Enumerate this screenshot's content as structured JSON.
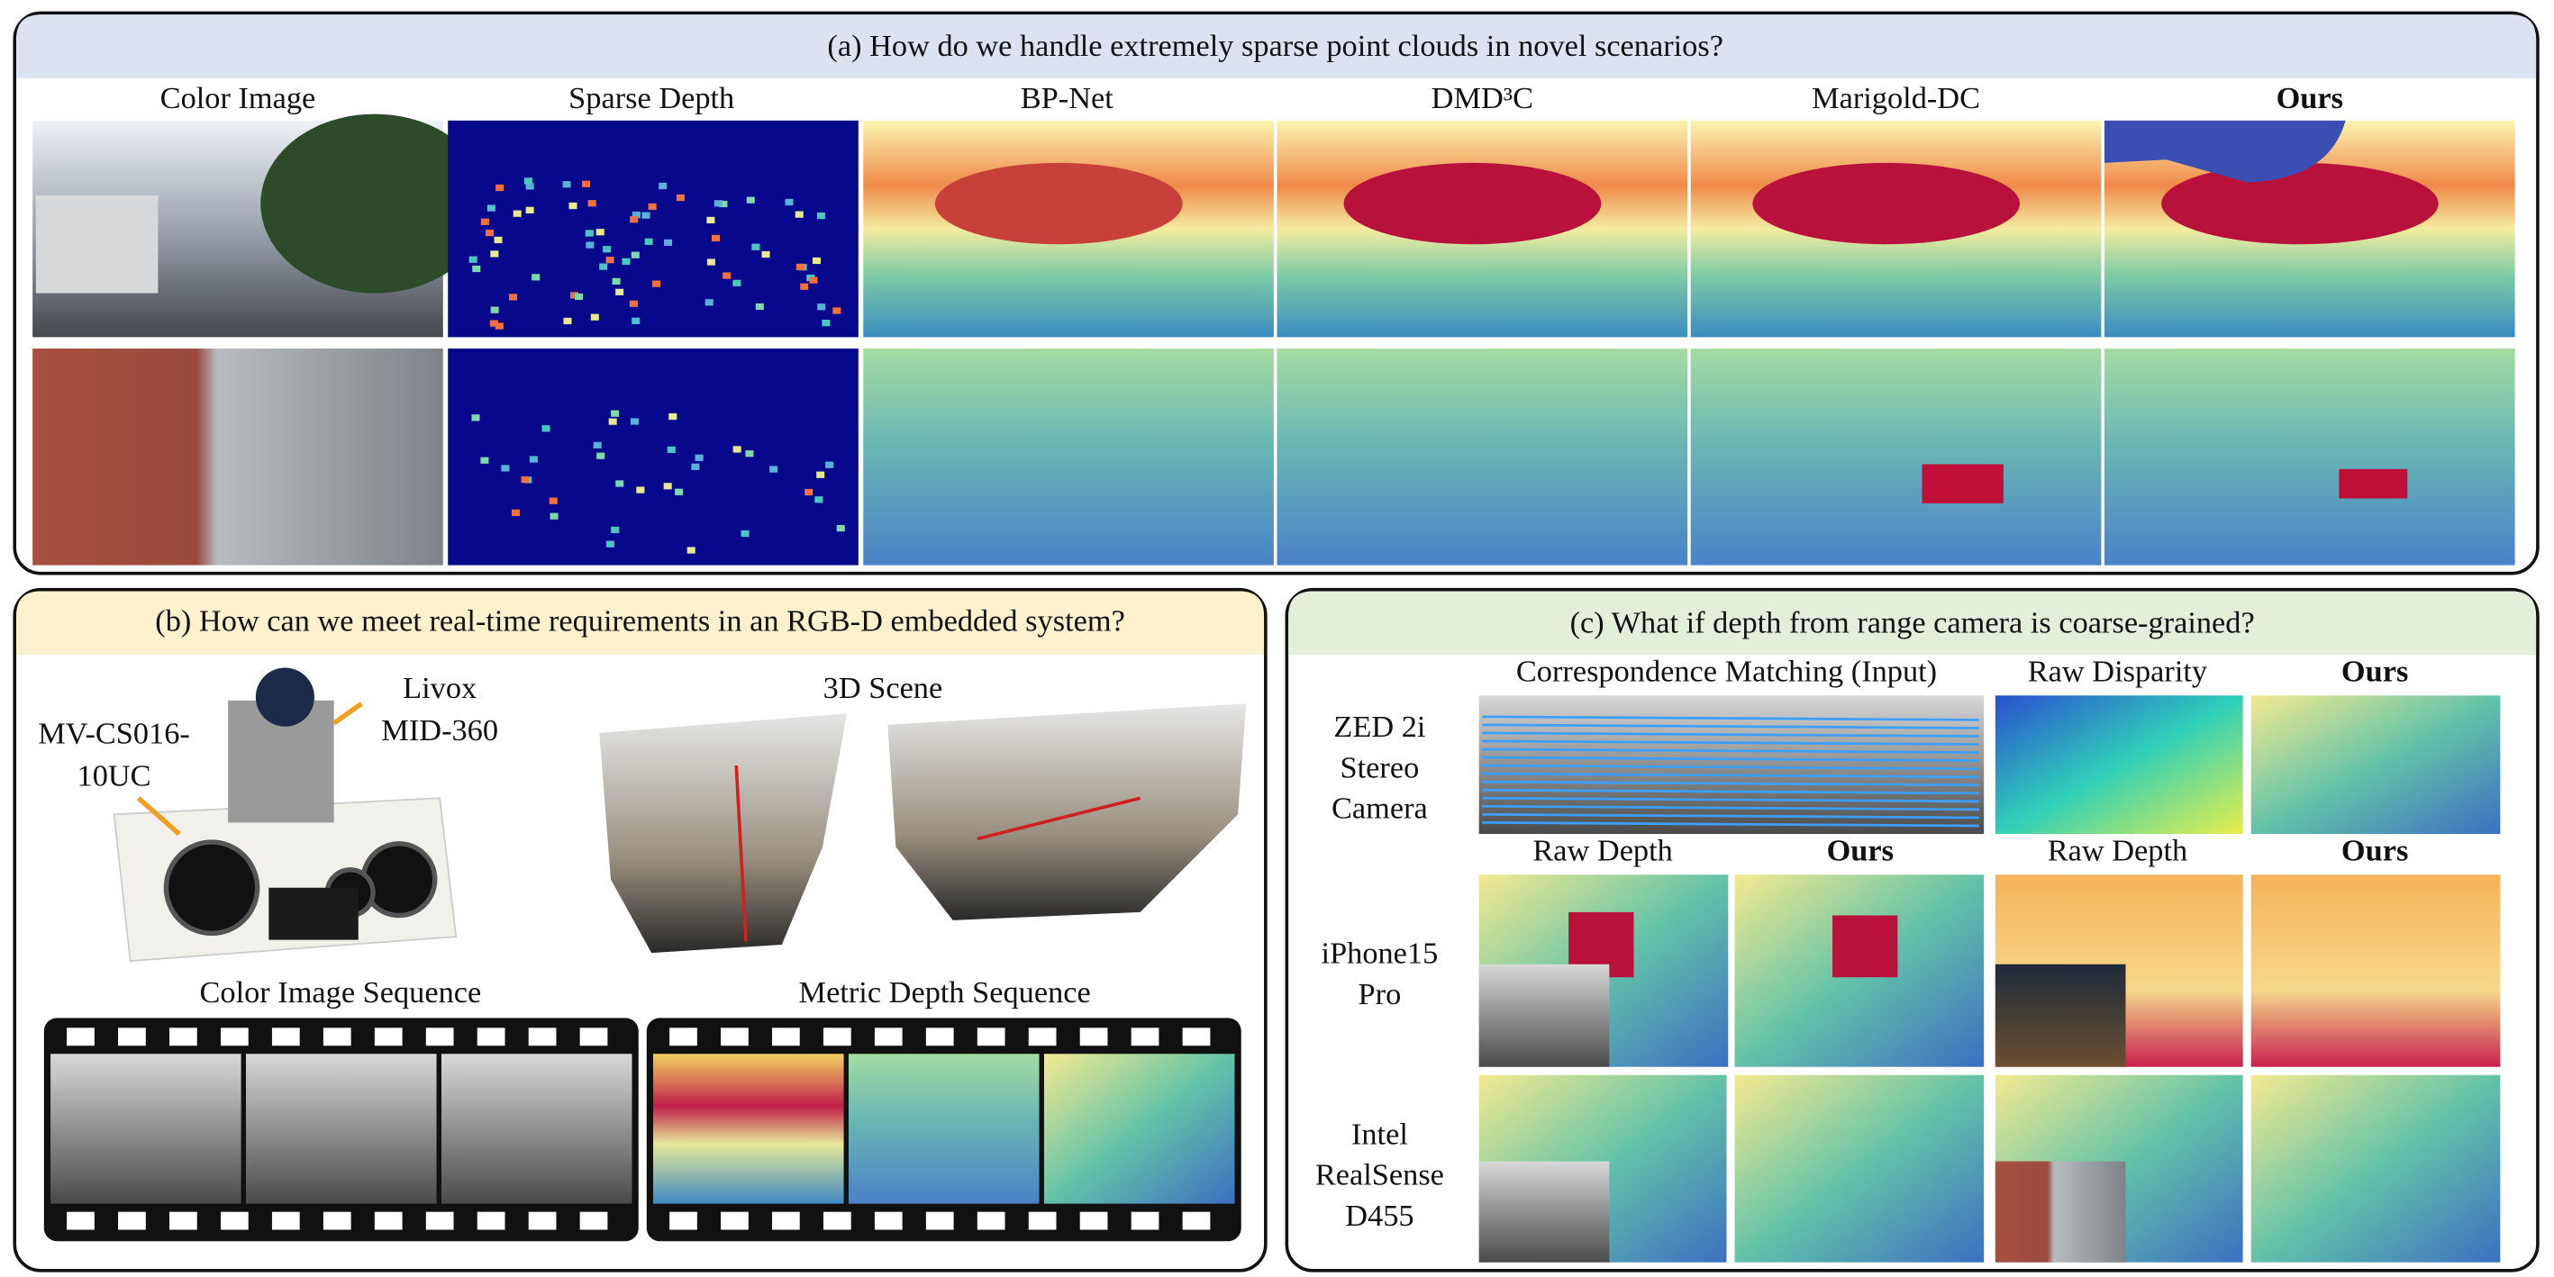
{
  "panel_a": {
    "title": "(a) How do we handle extremely sparse point clouds in novel scenarios?",
    "columns": [
      "Color Image",
      "Sparse Depth",
      "BP-Net",
      "DMD³C",
      "Marigold-DC",
      "Ours"
    ]
  },
  "panel_b": {
    "title": "(b) How can we meet real-time requirements in an RGB-D embedded system?",
    "lidar_label": [
      "Livox",
      "MID-360"
    ],
    "camera_label": [
      "MV-CS016-",
      "10UC"
    ],
    "scene_label": "3D Scene",
    "sequence_labels": [
      "Color Image Sequence",
      "Metric Depth Sequence"
    ]
  },
  "panel_c": {
    "title": "(c) What if depth from range camera is coarse-grained?",
    "row1_headers": [
      "Correspondence Matching (Input)",
      "Raw Disparity",
      "Ours"
    ],
    "row2_headers": [
      "Raw Depth",
      "Ours",
      "Raw Depth",
      "Ours"
    ],
    "row_labels": [
      [
        "ZED 2i",
        "Stereo",
        "Camera"
      ],
      [
        "iPhone15",
        "Pro"
      ],
      [
        "Intel",
        "RealSense",
        "D455"
      ]
    ]
  }
}
